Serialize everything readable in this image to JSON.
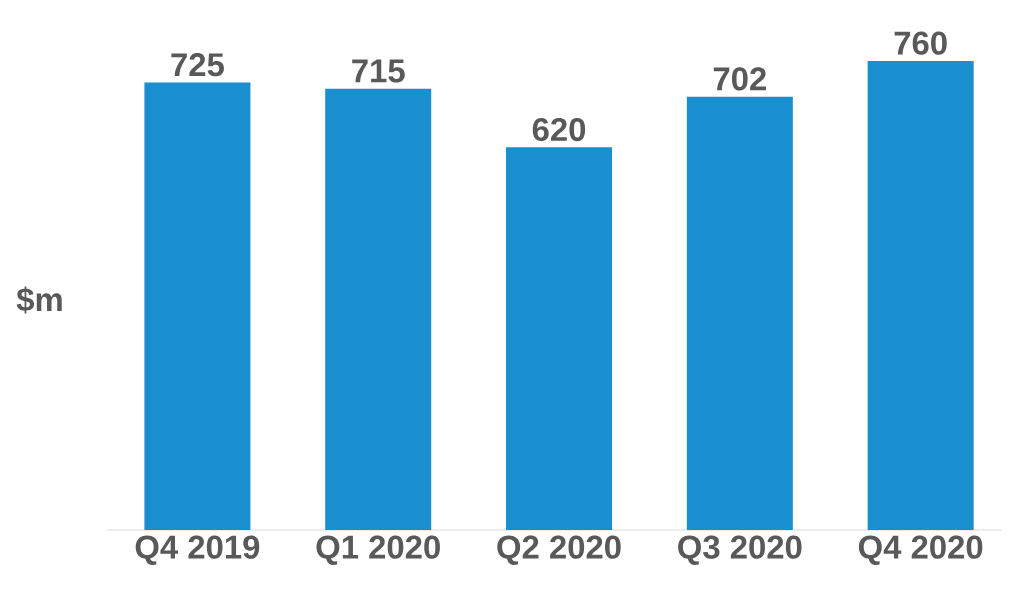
{
  "chart_data": {
    "type": "bar",
    "ylabel": "$m",
    "categories": [
      "Q4 2019",
      "Q1 2020",
      "Q2 2020",
      "Q3 2020",
      "Q4 2020"
    ],
    "values": [
      725,
      715,
      620,
      702,
      760
    ],
    "color": "#1a8fd0",
    "data_labels": true
  }
}
